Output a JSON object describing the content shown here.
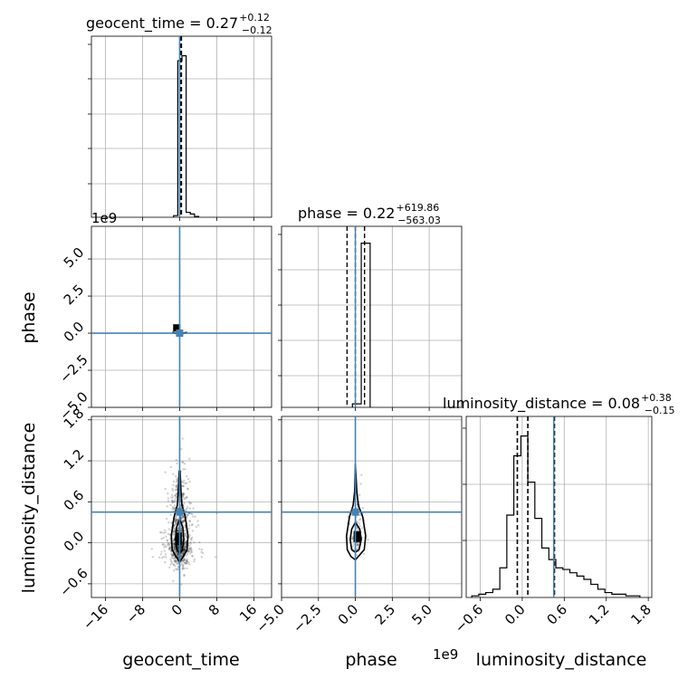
{
  "chart_data": {
    "type": "corner",
    "truth_color": "#4682b4",
    "parameters": [
      "geocent_time",
      "phase",
      "luminosity_distance"
    ],
    "titles": [
      {
        "param": "geocent_time",
        "text": "geocent_time = 0.27",
        "plus": "+0.12",
        "minus": "−0.12"
      },
      {
        "param": "phase",
        "text": "phase = 0.22",
        "plus": "+619.86",
        "minus": "−563.03"
      },
      {
        "param": "luminosity_distance",
        "text": "luminosity_distance = 0.08",
        "plus": "+0.38",
        "minus": "−0.15"
      }
    ],
    "ranges": {
      "geocent_time": [
        -19,
        19.8
      ],
      "phase": [
        -5000000000.0,
        7200000000.0
      ],
      "luminosity_distance": [
        -0.8,
        1.85
      ]
    },
    "ticks": {
      "geocent_time": [
        -16,
        -8,
        0,
        8,
        16
      ],
      "geocent_time_labels": [
        "−16",
        "−8",
        "0",
        "8",
        "16"
      ],
      "phase": [
        -5.0,
        -2.5,
        0.0,
        2.5,
        5.0
      ],
      "phase_labels": [
        "−5.0",
        "−2.5",
        "0.0",
        "2.5",
        "5.0"
      ],
      "luminosity_distance": [
        -0.6,
        0.0,
        0.6,
        1.2,
        1.8
      ],
      "luminosity_distance_labels": [
        "−0.6",
        "0.0",
        "0.6",
        "1.2",
        "1.8"
      ]
    },
    "offset_text": "1e9",
    "truths": {
      "geocent_time": 0,
      "phase": 0,
      "luminosity_distance": 0.45
    },
    "quantiles": {
      "geocent_time": [
        0.15,
        0.27,
        0.39
      ],
      "phase": [
        -563000000.0,
        0.22,
        620000000.0
      ],
      "luminosity_distance": [
        -0.07,
        0.08,
        0.46
      ]
    },
    "histograms": {
      "geocent_time": {
        "edges": [
          -1.3,
          -0.4,
          0.5,
          1.4,
          2.3,
          3.2,
          4.1
        ],
        "heights": [
          0.01,
          0.95,
          0.98,
          0.03,
          0.02,
          0.005
        ]
      },
      "phase": {
        "edges": [
          -200000000.0,
          400000000.0,
          1000000000.0
        ],
        "heights": [
          0.02,
          0.93
        ]
      },
      "luminosity_distance": {
        "edges": [
          -0.72,
          -0.62,
          -0.52,
          -0.42,
          -0.32,
          -0.22,
          -0.12,
          -0.02,
          0.08,
          0.18,
          0.28,
          0.38,
          0.48,
          0.58,
          0.68,
          0.78,
          0.88,
          0.98,
          1.08,
          1.18,
          1.28,
          1.38,
          1.48,
          1.58,
          1.68
        ],
        "heights": [
          0.01,
          0.02,
          0.03,
          0.05,
          0.18,
          0.5,
          0.86,
          0.98,
          0.7,
          0.48,
          0.3,
          0.23,
          0.18,
          0.17,
          0.15,
          0.13,
          0.11,
          0.08,
          0.05,
          0.03,
          0.02,
          0.02,
          0.01,
          0.01
        ]
      }
    },
    "contours": {
      "phase_vs_geocent_time": {
        "x": [
          -1.6,
          -1.0,
          -0.4,
          0,
          0.4,
          1.0,
          1.6,
          1.0,
          0.4,
          0,
          -0.4,
          -1.0,
          -1.6
        ],
        "y": [
          50000000.0,
          20000000.0,
          10000000.0,
          5000000.0,
          10000000.0,
          20000000.0,
          50000000.0,
          -10000000.0,
          -30000000.0,
          -50000000.0,
          -30000000.0,
          -10000000.0,
          50000000.0
        ]
      },
      "luminosity_distance_vs_geocent_time_outer": {
        "x": [
          0.1,
          0.3,
          0.5,
          1.2,
          1.8,
          1.6,
          0.8,
          0.0,
          -0.8,
          -1.6,
          -1.8,
          -1.2,
          -0.5,
          -0.3,
          -0.1,
          0.1
        ],
        "y": [
          1.05,
          0.75,
          0.55,
          0.38,
          0.1,
          -0.1,
          -0.2,
          -0.28,
          -0.2,
          -0.1,
          0.1,
          0.38,
          0.55,
          0.75,
          1.05,
          1.05
        ]
      },
      "luminosity_distance_vs_geocent_time_inner": {
        "x": [
          0.0,
          0.7,
          0.9,
          0.6,
          0.0,
          -0.6,
          -0.9,
          -0.7,
          0.0
        ],
        "y": [
          0.35,
          0.22,
          0.05,
          -0.1,
          -0.15,
          -0.1,
          0.05,
          0.22,
          0.35
        ]
      },
      "luminosity_distance_vs_phase_outer": {
        "x": [
          0.0,
          100000000.0,
          200000000.0,
          500000000.0,
          700000000.0,
          600000000.0,
          200000000.0,
          0.0,
          -300000000.0,
          -550000000.0,
          -600000000.0,
          -400000000.0,
          -150000000.0,
          -50000000.0,
          0.0
        ],
        "y": [
          1.15,
          0.75,
          0.55,
          0.38,
          0.1,
          -0.1,
          -0.2,
          -0.25,
          -0.2,
          -0.1,
          0.1,
          0.38,
          0.55,
          0.75,
          1.15
        ]
      },
      "luminosity_distance_vs_phase_inner": {
        "x": [
          0.0,
          300000000.0,
          400000000.0,
          250000000.0,
          0.0,
          -250000000.0,
          -350000000.0,
          -250000000.0,
          0.0
        ],
        "y": [
          0.3,
          0.2,
          0.05,
          -0.1,
          -0.14,
          -0.1,
          0.05,
          0.2,
          0.3
        ]
      }
    }
  }
}
